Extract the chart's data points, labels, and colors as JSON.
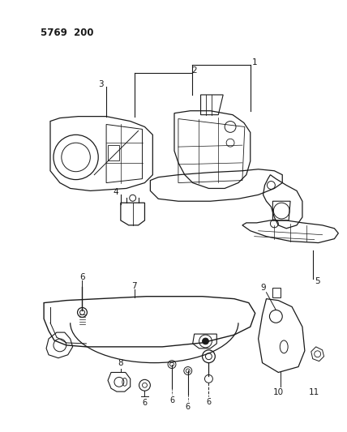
{
  "title": "5769  200",
  "bg": "#ffffff",
  "lc": "#1a1a1a",
  "fig_w": 4.28,
  "fig_h": 5.33,
  "dpi": 100
}
